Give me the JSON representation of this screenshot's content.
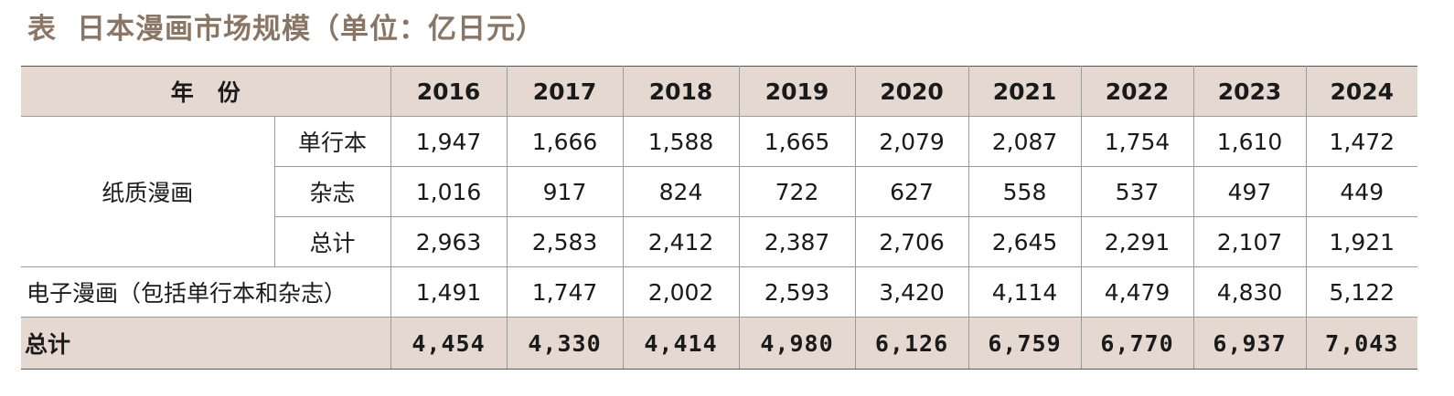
{
  "title": {
    "label": "表",
    "text": "日本漫画市场规模（单位：亿日元）"
  },
  "table": {
    "header_label": "年份",
    "years": [
      "2016",
      "2017",
      "2018",
      "2019",
      "2020",
      "2021",
      "2022",
      "2023",
      "2024"
    ],
    "paper_group_label": "纸质漫画",
    "paper_rows": [
      {
        "label": "单行本",
        "values": [
          "1,947",
          "1,666",
          "1,588",
          "1,665",
          "2,079",
          "2,087",
          "1,754",
          "1,610",
          "1,472"
        ]
      },
      {
        "label": "杂志",
        "values": [
          "1,016",
          "917",
          "824",
          "722",
          "627",
          "558",
          "537",
          "497",
          "449"
        ]
      },
      {
        "label": "总计",
        "values": [
          "2,963",
          "2,583",
          "2,412",
          "2,387",
          "2,706",
          "2,645",
          "2,291",
          "2,107",
          "1,921"
        ]
      }
    ],
    "digital_row": {
      "label": "电子漫画（包括单行本和杂志）",
      "values": [
        "1,491",
        "1,747",
        "2,002",
        "2,593",
        "3,420",
        "4,114",
        "4,479",
        "4,830",
        "5,122"
      ]
    },
    "total_row": {
      "label": "总计",
      "values": [
        "4,454",
        "4,330",
        "4,414",
        "4,980",
        "6,126",
        "6,759",
        "6,770",
        "6,937",
        "7,043"
      ]
    }
  }
}
